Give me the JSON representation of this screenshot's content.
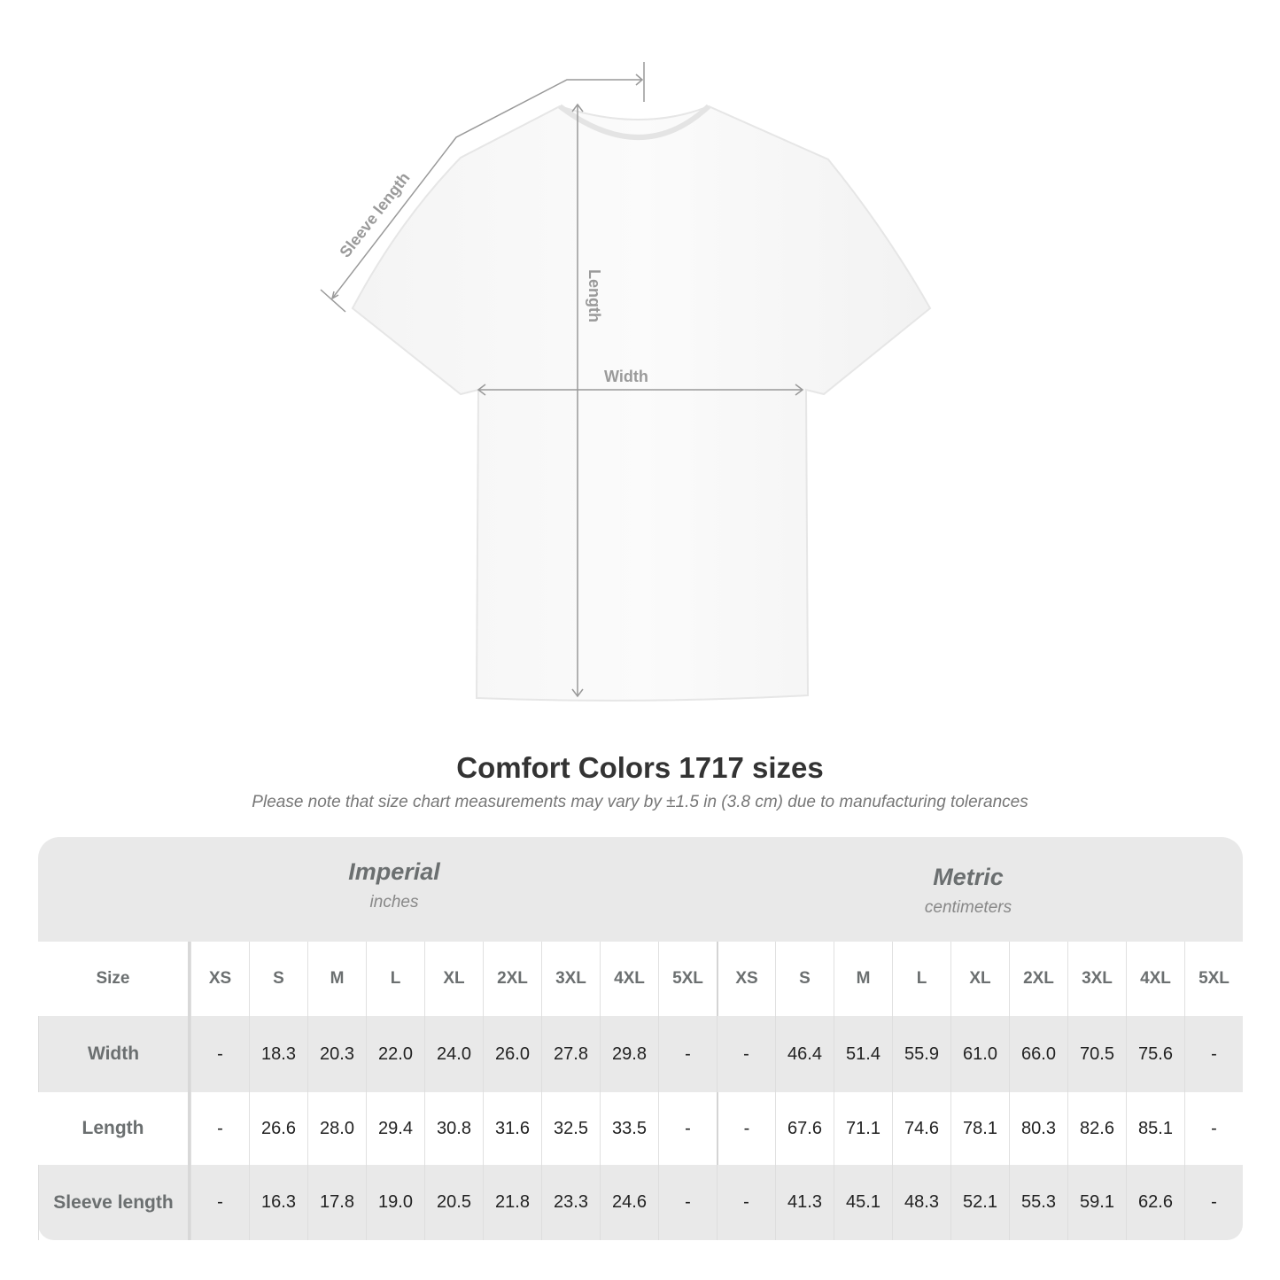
{
  "diagram": {
    "labels": {
      "sleeve": "Sleeve length",
      "length": "Length",
      "width": "Width"
    }
  },
  "title": "Comfort Colors 1717 sizes",
  "subtitle": "Please note that size chart measurements may vary by ±1.5 in (3.8 cm) due to manufacturing tolerances",
  "table": {
    "imperial": {
      "name": "Imperial",
      "unit": "inches"
    },
    "metric": {
      "name": "Metric",
      "unit": "centimeters"
    },
    "size_label": "Size",
    "sizes": [
      "XS",
      "S",
      "M",
      "L",
      "XL",
      "2XL",
      "3XL",
      "4XL",
      "5XL"
    ],
    "rows": [
      {
        "label": "Width",
        "imperial": [
          "-",
          "18.3",
          "20.3",
          "22.0",
          "24.0",
          "26.0",
          "27.8",
          "29.8",
          "-"
        ],
        "metric": [
          "-",
          "46.4",
          "51.4",
          "55.9",
          "61.0",
          "66.0",
          "70.5",
          "75.6",
          "-"
        ]
      },
      {
        "label": "Length",
        "imperial": [
          "-",
          "26.6",
          "28.0",
          "29.4",
          "30.8",
          "31.6",
          "32.5",
          "33.5",
          "-"
        ],
        "metric": [
          "-",
          "67.6",
          "71.1",
          "74.6",
          "78.1",
          "80.3",
          "82.6",
          "85.1",
          "-"
        ]
      },
      {
        "label": "Sleeve length",
        "imperial": [
          "-",
          "16.3",
          "17.8",
          "19.0",
          "20.5",
          "21.8",
          "23.3",
          "24.6",
          "-"
        ],
        "metric": [
          "-",
          "41.3",
          "45.1",
          "48.3",
          "52.1",
          "55.3",
          "59.1",
          "62.6",
          "-"
        ]
      }
    ]
  }
}
